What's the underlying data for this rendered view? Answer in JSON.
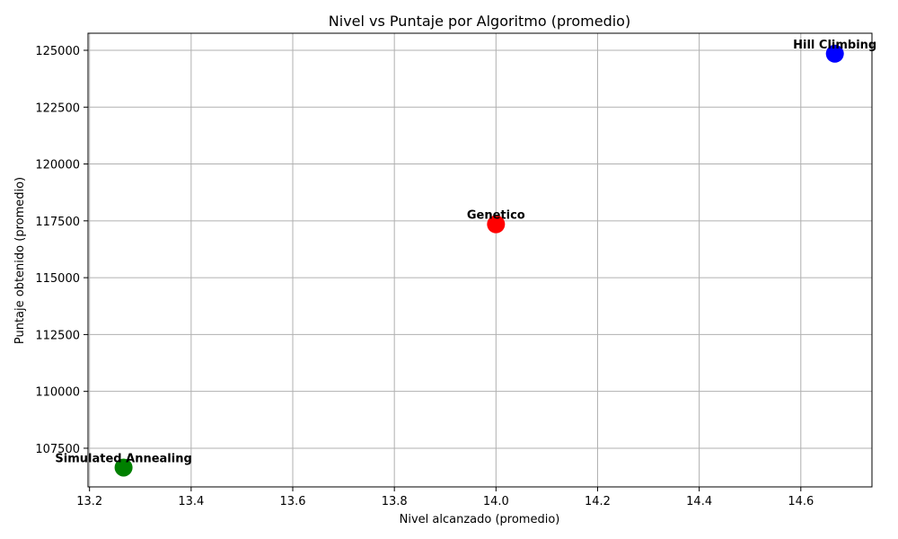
{
  "chart_data": {
    "type": "scatter",
    "title": "Nivel vs Puntaje por Algoritmo (promedio)",
    "xlabel": "Nivel alcanzado (promedio)",
    "ylabel": "Puntaje obtenido (promedio)",
    "xlim": [
      13.197,
      14.74
    ],
    "ylim": [
      105800,
      125750
    ],
    "xticks": [
      13.2,
      13.4,
      13.6,
      13.8,
      14.0,
      14.2,
      14.4,
      14.6
    ],
    "xtick_labels": [
      "13.2",
      "13.4",
      "13.6",
      "13.8",
      "14.0",
      "14.2",
      "14.4",
      "14.6"
    ],
    "yticks": [
      107500,
      110000,
      112500,
      115000,
      117500,
      120000,
      122500,
      125000
    ],
    "ytick_labels": [
      "107500",
      "110000",
      "112500",
      "115000",
      "117500",
      "120000",
      "122500",
      "125000"
    ],
    "grid": true,
    "points": [
      {
        "label": "Hill Climbing",
        "x": 14.667,
        "y": 124850,
        "color": "#0000ff"
      },
      {
        "label": "Genetico",
        "x": 14.0,
        "y": 117350,
        "color": "#ff0000"
      },
      {
        "label": "Simulated Annealing",
        "x": 13.267,
        "y": 106650,
        "color": "#008000"
      }
    ]
  }
}
